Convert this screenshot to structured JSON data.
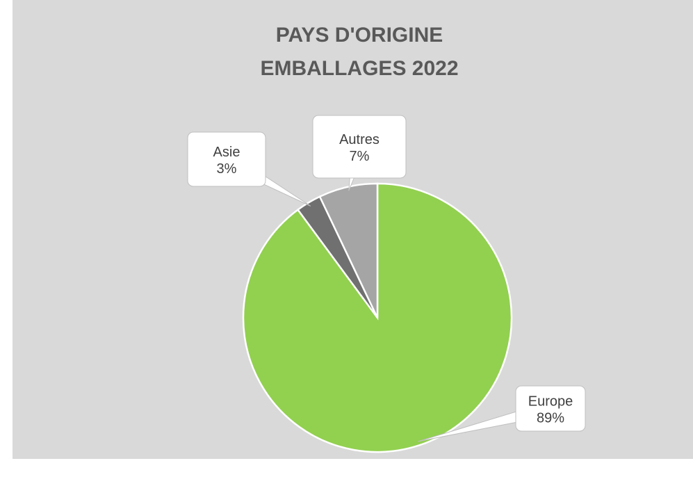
{
  "chart_data": {
    "type": "pie",
    "title_lines": [
      "PAYS D'ORIGINE",
      "EMBALLAGES 2022"
    ],
    "categories": [
      "Europe",
      "Asie",
      "Autres"
    ],
    "values": [
      89,
      3,
      7
    ],
    "value_labels": [
      "89%",
      "3%",
      "7%"
    ],
    "colors": [
      "#92d050",
      "#707070",
      "#a5a5a5"
    ]
  }
}
